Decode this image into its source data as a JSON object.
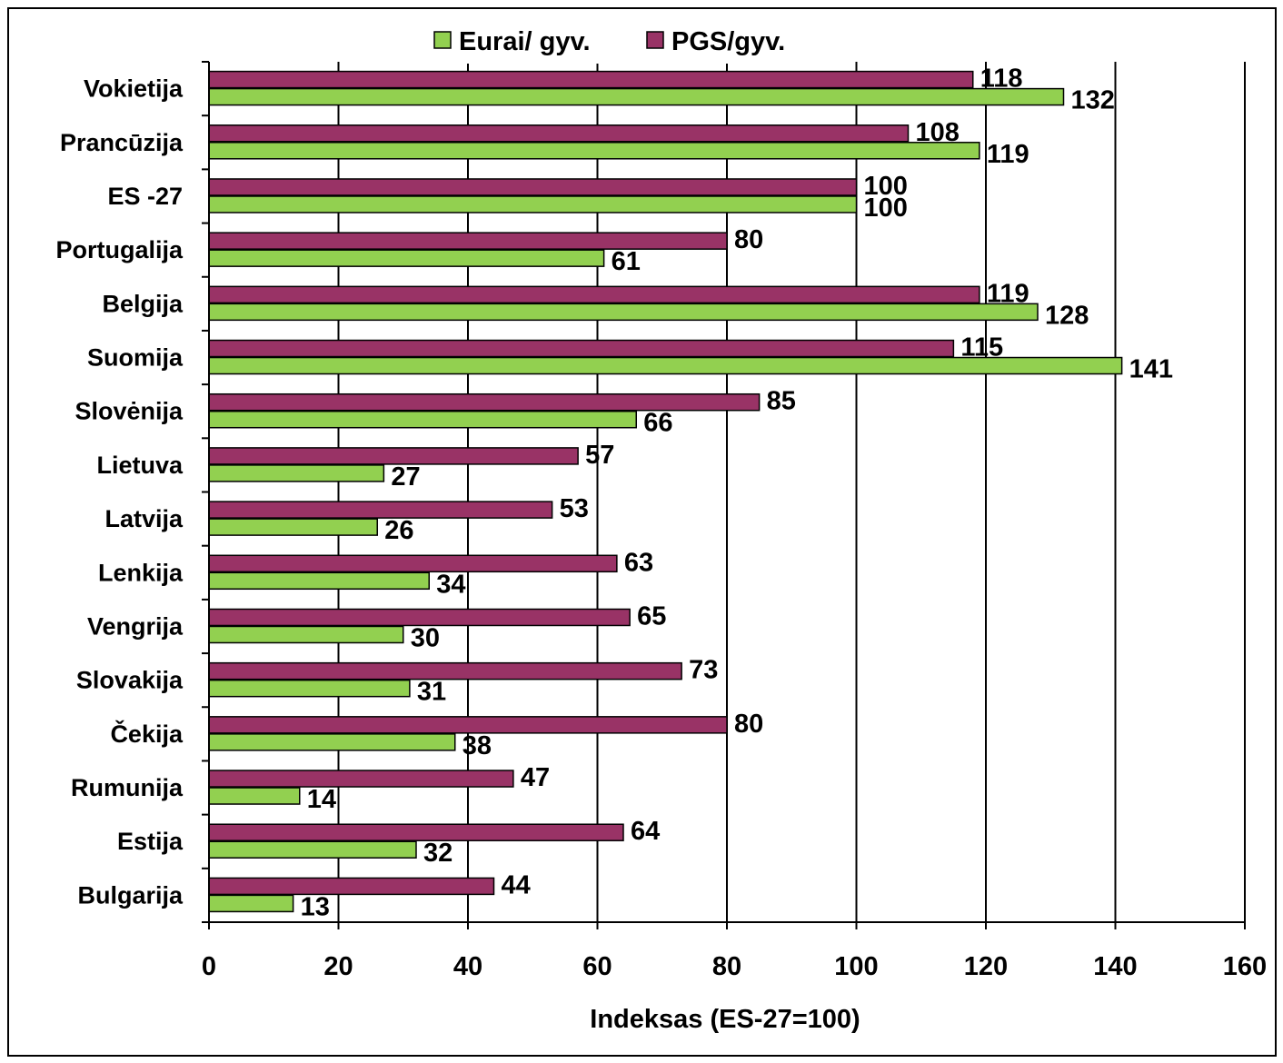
{
  "chart_data": {
    "type": "bar",
    "orientation": "horizontal",
    "categories": [
      "Vokietija",
      "Prancūzija",
      "ES -27",
      "Portugalija",
      "Belgija",
      "Suomija",
      "Slovėnija",
      "Lietuva",
      "Latvija",
      "Lenkija",
      "Vengrija",
      "Slovakija",
      "Čekija",
      "Rumunija",
      "Estija",
      "Bulgarija"
    ],
    "series": [
      {
        "name": "PGS/gyv.",
        "color": "#993366",
        "values": [
          118,
          108,
          100,
          80,
          119,
          115,
          85,
          57,
          53,
          63,
          65,
          73,
          80,
          47,
          64,
          44
        ]
      },
      {
        "name": "Eurai/ gyv.",
        "color": "#92d050",
        "values": [
          132,
          119,
          100,
          61,
          128,
          141,
          66,
          27,
          26,
          34,
          30,
          31,
          38,
          14,
          32,
          13
        ]
      }
    ],
    "legend_order": [
      "Eurai/ gyv.",
      "PGS/gyv."
    ],
    "xlabel": "Indeksas (ES-27=100)",
    "xlim": [
      0,
      160
    ],
    "xticks": [
      "0",
      "20",
      "40",
      "60",
      "80",
      "100",
      "120",
      "140",
      "160"
    ],
    "grid": true,
    "legend_position": "top"
  }
}
